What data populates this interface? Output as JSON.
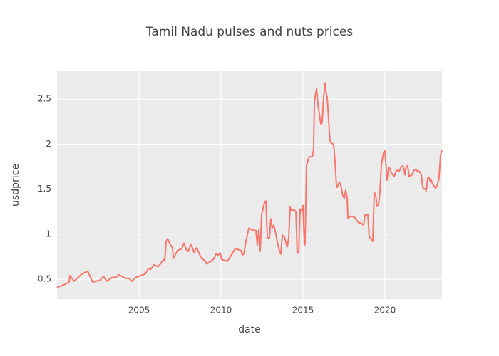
{
  "chart_data": {
    "type": "line",
    "title": "Tamil Nadu pulses and nuts prices",
    "x_label": "date",
    "y_label": "usdprice",
    "xlim": [
      2000,
      2023.48
    ],
    "xticks": [
      2005,
      2010,
      2015,
      2020
    ],
    "ylim": [
      0.28,
      2.81
    ],
    "yticks": [
      0.5,
      1,
      1.5,
      2,
      2.5
    ],
    "grid": true,
    "x": [
      2000,
      2000.43,
      2000.74,
      2000.78,
      2001.04,
      2001.52,
      2001.87,
      2002.17,
      2002.61,
      2002.83,
      2003.04,
      2003.35,
      2003.57,
      2003.78,
      2004.17,
      2004.39,
      2004.57,
      2004.78,
      2005.09,
      2005.39,
      2005.57,
      2005.7,
      2005.91,
      2006.17,
      2006.43,
      2006.52,
      2006.57,
      2006.65,
      2006.74,
      2006.96,
      2007.04,
      2007.09,
      2007.35,
      2007.61,
      2007.74,
      2007.91,
      2008,
      2008.17,
      2008.35,
      2008.52,
      2008.78,
      2009.04,
      2009.13,
      2009.39,
      2009.57,
      2009.7,
      2009.83,
      2009.96,
      2010.04,
      2010.39,
      2010.57,
      2010.87,
      2011.22,
      2011.3,
      2011.39,
      2011.52,
      2011.7,
      2011.87,
      2012.13,
      2012.22,
      2012.3,
      2012.39,
      2012.48,
      2012.65,
      2012.74,
      2012.83,
      2012.96,
      2013.04,
      2013.13,
      2013.22,
      2013.35,
      2013.52,
      2013.65,
      2013.74,
      2013.87,
      2014.04,
      2014.13,
      2014.22,
      2014.3,
      2014.48,
      2014.57,
      2014.65,
      2014.74,
      2014.83,
      2014.91,
      2015,
      2015.09,
      2015.13,
      2015.22,
      2015.39,
      2015.57,
      2015.65,
      2015.7,
      2015.83,
      2015.91,
      2016.09,
      2016.17,
      2016.26,
      2016.35,
      2016.43,
      2016.48,
      2016.65,
      2016.74,
      2016.87,
      2016.96,
      2017.04,
      2017.09,
      2017.22,
      2017.3,
      2017.43,
      2017.52,
      2017.61,
      2017.7,
      2017.74,
      2017.91,
      2018.13,
      2018.26,
      2018.39,
      2018.57,
      2018.7,
      2018.78,
      2018.96,
      2019.04,
      2019.13,
      2019.26,
      2019.35,
      2019.43,
      2019.52,
      2019.61,
      2019.7,
      2019.78,
      2019.91,
      2020,
      2020.13,
      2020.22,
      2020.3,
      2020.39,
      2020.52,
      2020.57,
      2020.7,
      2020.87,
      2021,
      2021.09,
      2021.17,
      2021.22,
      2021.3,
      2021.39,
      2021.48,
      2021.65,
      2021.78,
      2021.91,
      2022,
      2022.09,
      2022.22,
      2022.3,
      2022.39,
      2022.48,
      2022.52,
      2022.61,
      2022.7,
      2022.78,
      2022.83,
      2022.91,
      2023.09,
      2023.17,
      2023.3,
      2023.39,
      2023.48
    ],
    "series": [
      {
        "color": "#f8766d",
        "values": [
          0.41,
          0.44,
          0.47,
          0.54,
          0.48,
          0.56,
          0.59,
          0.47,
          0.49,
          0.53,
          0.48,
          0.52,
          0.52,
          0.55,
          0.51,
          0.51,
          0.48,
          0.52,
          0.54,
          0.56,
          0.62,
          0.61,
          0.66,
          0.64,
          0.7,
          0.72,
          0.7,
          0.92,
          0.95,
          0.87,
          0.85,
          0.73,
          0.82,
          0.84,
          0.9,
          0.82,
          0.81,
          0.89,
          0.8,
          0.85,
          0.74,
          0.7,
          0.67,
          0.7,
          0.73,
          0.78,
          0.77,
          0.79,
          0.72,
          0.7,
          0.75,
          0.84,
          0.82,
          0.77,
          0.78,
          0.92,
          1.07,
          1.05,
          1.04,
          0.88,
          1.05,
          0.81,
          1.22,
          1.35,
          1.37,
          0.96,
          0.96,
          1.17,
          1.07,
          1.1,
          1.0,
          0.84,
          0.78,
          0.99,
          0.97,
          0.86,
          0.95,
          1.3,
          1.26,
          1.27,
          1.25,
          0.79,
          0.79,
          1.28,
          1.26,
          1.32,
          0.87,
          0.9,
          1.77,
          1.86,
          1.86,
          1.94,
          2.47,
          2.62,
          2.45,
          2.22,
          2.24,
          2.51,
          2.68,
          2.55,
          2.52,
          2.03,
          2.01,
          2.0,
          1.8,
          1.55,
          1.52,
          1.58,
          1.55,
          1.43,
          1.4,
          1.49,
          1.4,
          1.18,
          1.2,
          1.19,
          1.16,
          1.13,
          1.12,
          1.1,
          1.21,
          1.22,
          0.97,
          0.95,
          0.92,
          1.46,
          1.45,
          1.31,
          1.32,
          1.48,
          1.76,
          1.9,
          1.93,
          1.6,
          1.74,
          1.73,
          1.68,
          1.65,
          1.64,
          1.71,
          1.7,
          1.75,
          1.76,
          1.72,
          1.66,
          1.75,
          1.76,
          1.64,
          1.66,
          1.71,
          1.72,
          1.69,
          1.7,
          1.66,
          1.53,
          1.5,
          1.51,
          1.48,
          1.62,
          1.63,
          1.58,
          1.6,
          1.56,
          1.51,
          1.53,
          1.62,
          1.87,
          1.94
        ]
      }
    ]
  }
}
